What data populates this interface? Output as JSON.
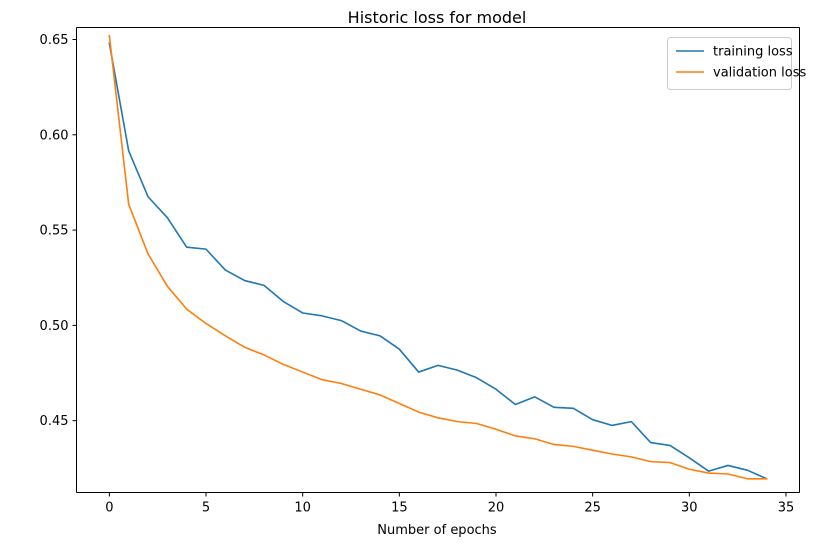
{
  "chart_data": {
    "type": "line",
    "title": "Historic loss for model",
    "xlabel": "Number of epochs",
    "ylabel": "",
    "xlim": [
      -1.7,
      35.7
    ],
    "ylim": [
      0.4123,
      0.6563
    ],
    "x_ticks": [
      0,
      5,
      10,
      15,
      20,
      25,
      30,
      35
    ],
    "y_ticks": [
      0.45,
      0.5,
      0.55,
      0.6,
      0.65
    ],
    "x_tick_labels": [
      "0",
      "5",
      "10",
      "15",
      "20",
      "25",
      "30",
      "35"
    ],
    "y_tick_labels": [
      "0.45",
      "0.50",
      "0.55",
      "0.60",
      "0.65"
    ],
    "grid": false,
    "legend_position": "top-right",
    "x": [
      0,
      1,
      2,
      3,
      4,
      5,
      6,
      7,
      8,
      9,
      10,
      11,
      12,
      13,
      14,
      15,
      16,
      17,
      18,
      19,
      20,
      21,
      22,
      23,
      24,
      25,
      26,
      27,
      28,
      29,
      30,
      31,
      32,
      33,
      34
    ],
    "series": [
      {
        "name": "training loss",
        "color": "#1f77b4",
        "values": [
          0.648,
          0.5915,
          0.5675,
          0.5565,
          0.541,
          0.54,
          0.529,
          0.5235,
          0.521,
          0.5125,
          0.5065,
          0.505,
          0.5025,
          0.497,
          0.4945,
          0.4875,
          0.4755,
          0.479,
          0.4765,
          0.4725,
          0.4665,
          0.4585,
          0.4625,
          0.457,
          0.4565,
          0.4505,
          0.4475,
          0.4495,
          0.4385,
          0.437,
          0.4305,
          0.4235,
          0.4265,
          0.424,
          0.4195
        ]
      },
      {
        "name": "validation loss",
        "color": "#ff7f0e",
        "values": [
          0.652,
          0.5635,
          0.5375,
          0.5205,
          0.5085,
          0.501,
          0.4945,
          0.4885,
          0.4845,
          0.4795,
          0.4755,
          0.4715,
          0.4695,
          0.4665,
          0.4635,
          0.459,
          0.4545,
          0.4515,
          0.4495,
          0.4485,
          0.4455,
          0.442,
          0.4405,
          0.4375,
          0.4365,
          0.4345,
          0.4325,
          0.431,
          0.4285,
          0.428,
          0.4245,
          0.4225,
          0.422,
          0.4195,
          0.4195
        ]
      }
    ]
  }
}
